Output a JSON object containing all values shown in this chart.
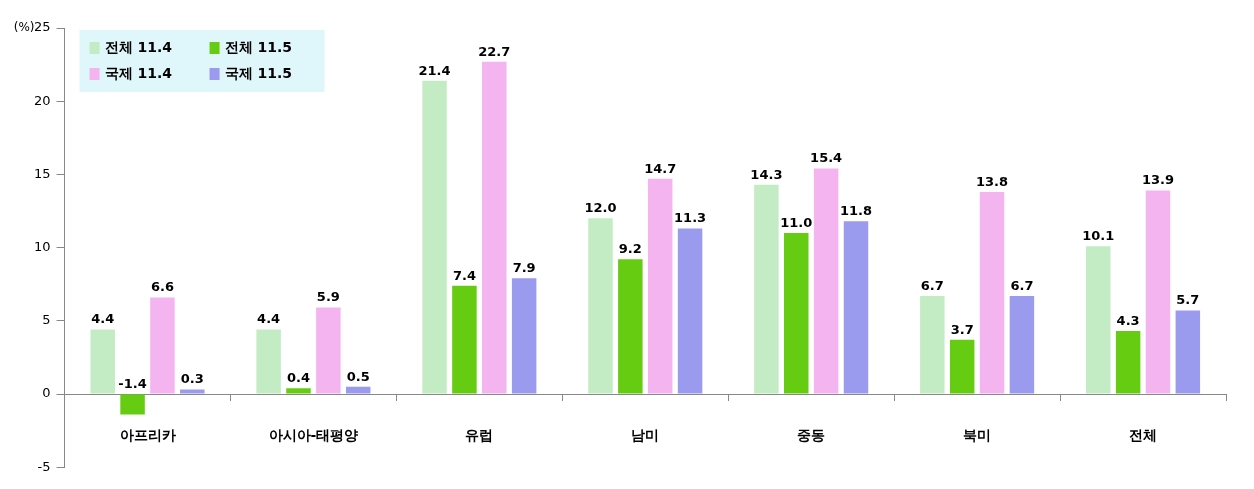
{
  "chart_data": {
    "type": "bar",
    "ylabel": "(%)",
    "categories": [
      "아프리카",
      "아시아-태평양",
      "유럽",
      "남미",
      "중동",
      "북미",
      "전체"
    ],
    "series": [
      {
        "name": "전체 11.4",
        "color": "#c4ecc4",
        "values": [
          4.4,
          4.4,
          21.4,
          12.0,
          14.3,
          6.7,
          10.1
        ],
        "value_labels": [
          "4.4",
          "4.4",
          "21.4",
          "12.0",
          "14.3",
          "6.7",
          "10.1"
        ]
      },
      {
        "name": "전체 11.5",
        "color": "#66cc11",
        "values": [
          -1.4,
          0.4,
          7.4,
          9.2,
          11.0,
          3.7,
          4.3
        ],
        "value_labels": [
          "-1.4",
          "0.4",
          "7.4",
          "9.2",
          "11.0",
          "3.7",
          "4.3"
        ]
      },
      {
        "name": "국제 11.4",
        "color": "#f4b4f0",
        "values": [
          6.6,
          5.9,
          22.7,
          14.7,
          15.4,
          13.8,
          13.9
        ],
        "value_labels": [
          "6.6",
          "5.9",
          "22.7",
          "14.7",
          "15.4",
          "13.8",
          "13.9"
        ]
      },
      {
        "name": "국제 11.5",
        "color": "#9a9aee",
        "values": [
          0.3,
          0.5,
          7.9,
          11.3,
          11.8,
          6.7,
          5.7
        ],
        "value_labels": [
          "0.3",
          "0.5",
          "7.9",
          "11.3",
          "11.8",
          "6.7",
          "5.7"
        ]
      }
    ],
    "ylim": [
      -5,
      25
    ],
    "yticks": [
      -5,
      0,
      5,
      10,
      15,
      20,
      25
    ],
    "grid": false,
    "legend": "top left"
  }
}
